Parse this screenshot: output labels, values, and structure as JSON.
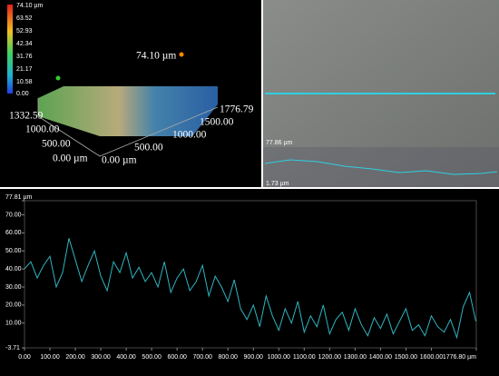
{
  "surface_3d": {
    "colorbar_labels": [
      "74.10 µm",
      "63.52",
      "52.93",
      "42.34",
      "31.76",
      "21.17",
      "10.58",
      "0.00"
    ],
    "peak_label": "74.10 µm",
    "y_axis_labels": [
      "1332.59",
      "1000.00",
      "500.00",
      "0.00 µm"
    ],
    "x_axis_labels": [
      "0.00 µm",
      "500.00",
      "1000.00",
      "1500.00",
      "1776.79"
    ]
  },
  "image": {
    "top_label": "77.86 µm",
    "bottom_label": "1.73 µm"
  },
  "chart_data": {
    "type": "line",
    "x": [
      0,
      25,
      50,
      75,
      100,
      125,
      150,
      175,
      200,
      225,
      250,
      275,
      300,
      325,
      350,
      375,
      400,
      425,
      450,
      475,
      500,
      525,
      550,
      575,
      600,
      625,
      650,
      675,
      700,
      725,
      750,
      775,
      800,
      825,
      850,
      875,
      900,
      925,
      950,
      975,
      1000,
      1025,
      1050,
      1075,
      1100,
      1125,
      1150,
      1175,
      1200,
      1225,
      1250,
      1275,
      1300,
      1325,
      1350,
      1375,
      1400,
      1425,
      1450,
      1475,
      1500,
      1525,
      1550,
      1575,
      1600,
      1625,
      1650,
      1675,
      1700,
      1725,
      1750,
      1775
    ],
    "series": [
      {
        "color": "#2fb5c0",
        "values": [
          40,
          44,
          35,
          42,
          47,
          30,
          38,
          57,
          45,
          33,
          42,
          50,
          36,
          28,
          44,
          38,
          49,
          35,
          41,
          33,
          38,
          30,
          44,
          27,
          35,
          40,
          28,
          33,
          42,
          25,
          36,
          30,
          22,
          34,
          18,
          12,
          20,
          8,
          25,
          14,
          6,
          18,
          10,
          22,
          5,
          14,
          8,
          20,
          4,
          12,
          16,
          6,
          18,
          9,
          3,
          13,
          7,
          15,
          4,
          11,
          18,
          6,
          9,
          3,
          14,
          8,
          5,
          12,
          2,
          19,
          27,
          11
        ]
      }
    ],
    "xlim": [
      0,
      1776.8
    ],
    "ylim": [
      -3.71,
      77.81
    ],
    "yticks": [
      {
        "value": 77.81,
        "label": "77.81 µm"
      },
      {
        "value": 70,
        "label": "70.00"
      },
      {
        "value": 60,
        "label": "60.00"
      },
      {
        "value": 50,
        "label": "50.00"
      },
      {
        "value": 40,
        "label": "40.00"
      },
      {
        "value": 30,
        "label": "30.00"
      },
      {
        "value": 20,
        "label": "20.00"
      },
      {
        "value": 10,
        "label": "10.00"
      },
      {
        "value": -3.71,
        "label": "-3.71"
      }
    ],
    "xticks": [
      {
        "value": 0,
        "label": "0.00"
      },
      {
        "value": 100,
        "label": "100.00"
      },
      {
        "value": 200,
        "label": "200.00"
      },
      {
        "value": 300,
        "label": "300.00"
      },
      {
        "value": 400,
        "label": "400.00"
      },
      {
        "value": 500,
        "label": "500.00"
      },
      {
        "value": 600,
        "label": "600.00"
      },
      {
        "value": 700,
        "label": "700.00"
      },
      {
        "value": 800,
        "label": "800.00"
      },
      {
        "value": 900,
        "label": "900.00"
      },
      {
        "value": 1000,
        "label": "1000.00"
      },
      {
        "value": 1100,
        "label": "1100.00"
      },
      {
        "value": 1200,
        "label": "1200.00"
      },
      {
        "value": 1300,
        "label": "1300.00"
      },
      {
        "value": 1400,
        "label": "1400.00"
      },
      {
        "value": 1500,
        "label": "1500.00"
      },
      {
        "value": 1600,
        "label": "1600.00"
      },
      {
        "value": 1776.8,
        "label": "1776.80 µm"
      }
    ]
  }
}
